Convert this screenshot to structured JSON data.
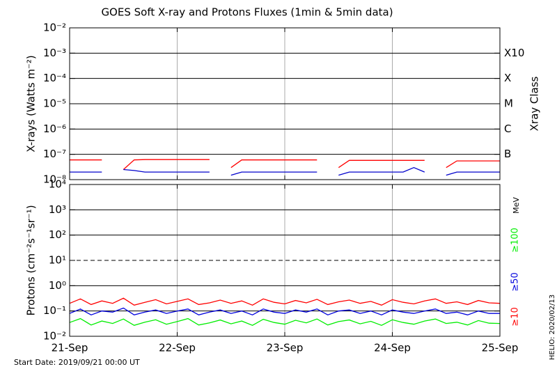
{
  "title": "GOES Soft X-ray and Protons Fluxes   (1min & 5min data)",
  "start_date": "Start Date: 2019/09/21 00:00 UT",
  "credit": "HELIO: 2020/02/13",
  "chart_data": [
    {
      "type": "line",
      "ylabel": "X-rays (Watts m⁻²)",
      "y2label": "Xray Class",
      "log": true,
      "xlim": [
        0,
        4
      ],
      "ylim": [
        1e-08,
        0.01
      ],
      "yticks": [
        {
          "value": 0.01,
          "label": "10⁻²"
        },
        {
          "value": 0.001,
          "label": "10⁻³"
        },
        {
          "value": 0.0001,
          "label": "10⁻⁴"
        },
        {
          "value": 1e-05,
          "label": "10⁻⁵"
        },
        {
          "value": 1e-06,
          "label": "10⁻⁶"
        },
        {
          "value": 1e-07,
          "label": "10⁻⁷"
        },
        {
          "value": 1e-08,
          "label": "10⁻⁸"
        }
      ],
      "y2lim": [
        1e-08,
        0.01
      ],
      "y2ticks": [
        {
          "value": 0.001,
          "label": "X10"
        },
        {
          "value": 0.0001,
          "label": "X"
        },
        {
          "value": 1e-05,
          "label": "M"
        },
        {
          "value": 1e-06,
          "label": "C"
        },
        {
          "value": 1e-07,
          "label": "B"
        }
      ],
      "x": [
        0,
        0.1,
        0.2,
        0.3,
        0.4,
        0.5,
        0.6,
        0.7,
        0.8,
        0.9,
        1,
        1.1,
        1.2,
        1.3,
        1.4,
        1.5,
        1.6,
        1.7,
        1.8,
        1.9,
        2,
        2.1,
        2.2,
        2.3,
        2.4,
        2.5,
        2.6,
        2.7,
        2.8,
        2.9,
        3,
        3.1,
        3.2,
        3.3,
        3.4,
        3.5,
        3.6,
        3.7,
        3.8,
        3.9,
        4
      ],
      "series": [
        {
          "color": "#ff0000",
          "values": [
            6e-08,
            6e-08,
            6e-08,
            6e-08,
            null,
            2.5e-08,
            6e-08,
            6.2e-08,
            6.2e-08,
            6.2e-08,
            6.2e-08,
            6.2e-08,
            6.2e-08,
            6.2e-08,
            null,
            3e-08,
            6e-08,
            6e-08,
            6e-08,
            6e-08,
            6e-08,
            6e-08,
            6e-08,
            6e-08,
            null,
            3e-08,
            5.8e-08,
            5.8e-08,
            5.8e-08,
            5.8e-08,
            5.8e-08,
            5.8e-08,
            5.8e-08,
            5.8e-08,
            null,
            3e-08,
            5.5e-08,
            5.5e-08,
            5.5e-08,
            5.5e-08,
            5.5e-08
          ]
        },
        {
          "color": "#0000cc",
          "values": [
            2e-08,
            2e-08,
            2e-08,
            2e-08,
            null,
            2.5e-08,
            2.3e-08,
            2e-08,
            2e-08,
            2e-08,
            2e-08,
            2e-08,
            2e-08,
            2e-08,
            null,
            1.5e-08,
            2e-08,
            2e-08,
            2e-08,
            2e-08,
            2e-08,
            2e-08,
            2e-08,
            2e-08,
            null,
            1.5e-08,
            2e-08,
            2e-08,
            2e-08,
            2e-08,
            2e-08,
            2e-08,
            3e-08,
            2e-08,
            null,
            1.5e-08,
            2e-08,
            2e-08,
            2e-08,
            2e-08,
            2e-08
          ]
        }
      ]
    },
    {
      "type": "line",
      "ylabel": "Protons (cm⁻²s⁻¹sr⁻¹)",
      "unit": "MeV",
      "log": true,
      "xlim": [
        0,
        4
      ],
      "xticks": [
        {
          "value": 0,
          "label": "21-Sep"
        },
        {
          "value": 1,
          "label": "22-Sep"
        },
        {
          "value": 2,
          "label": "23-Sep"
        },
        {
          "value": 3,
          "label": "24-Sep"
        },
        {
          "value": 4,
          "label": "25-Sep"
        }
      ],
      "ylim": [
        0.01,
        10000
      ],
      "yticks": [
        {
          "value": 10000,
          "label": "10⁴"
        },
        {
          "value": 1000,
          "label": "10³"
        },
        {
          "value": 100,
          "label": "10²"
        },
        {
          "value": 10,
          "label": "10¹"
        },
        {
          "value": 1,
          "label": "10⁰"
        },
        {
          "value": 0.1,
          "label": "10⁻¹"
        },
        {
          "value": 0.01,
          "label": "10⁻²"
        }
      ],
      "reference_line": 10,
      "x": [
        0,
        0.1,
        0.2,
        0.3,
        0.4,
        0.5,
        0.6,
        0.7,
        0.8,
        0.9,
        1,
        1.1,
        1.2,
        1.3,
        1.4,
        1.5,
        1.6,
        1.7,
        1.8,
        1.9,
        2,
        2.1,
        2.2,
        2.3,
        2.4,
        2.5,
        2.6,
        2.7,
        2.8,
        2.9,
        3,
        3.1,
        3.2,
        3.3,
        3.4,
        3.5,
        3.6,
        3.7,
        3.8,
        3.9,
        4
      ],
      "series": [
        {
          "name": "≥10",
          "color": "#ff0000",
          "values": [
            0.2,
            0.3,
            0.18,
            0.25,
            0.2,
            0.32,
            0.17,
            0.22,
            0.28,
            0.19,
            0.24,
            0.3,
            0.18,
            0.21,
            0.27,
            0.2,
            0.25,
            0.17,
            0.3,
            0.22,
            0.19,
            0.26,
            0.21,
            0.29,
            0.18,
            0.23,
            0.27,
            0.2,
            0.24,
            0.17,
            0.28,
            0.22,
            0.19,
            0.25,
            0.3,
            0.2,
            0.23,
            0.18,
            0.26,
            0.21,
            0.2
          ]
        },
        {
          "name": "≥50",
          "color": "#0000dd",
          "values": [
            0.08,
            0.12,
            0.07,
            0.1,
            0.09,
            0.13,
            0.07,
            0.09,
            0.11,
            0.08,
            0.1,
            0.12,
            0.07,
            0.09,
            0.11,
            0.08,
            0.1,
            0.07,
            0.12,
            0.09,
            0.08,
            0.11,
            0.09,
            0.12,
            0.07,
            0.1,
            0.11,
            0.08,
            0.1,
            0.07,
            0.11,
            0.09,
            0.08,
            0.1,
            0.12,
            0.08,
            0.09,
            0.07,
            0.1,
            0.08,
            0.08
          ]
        },
        {
          "name": "≥100",
          "color": "#00ee00",
          "values": [
            0.035,
            0.05,
            0.028,
            0.04,
            0.032,
            0.048,
            0.027,
            0.036,
            0.045,
            0.03,
            0.038,
            0.05,
            0.028,
            0.034,
            0.044,
            0.031,
            0.04,
            0.027,
            0.047,
            0.035,
            0.03,
            0.043,
            0.034,
            0.048,
            0.028,
            0.038,
            0.044,
            0.031,
            0.039,
            0.027,
            0.045,
            0.035,
            0.03,
            0.04,
            0.048,
            0.032,
            0.036,
            0.028,
            0.042,
            0.033,
            0.032
          ]
        }
      ]
    }
  ]
}
